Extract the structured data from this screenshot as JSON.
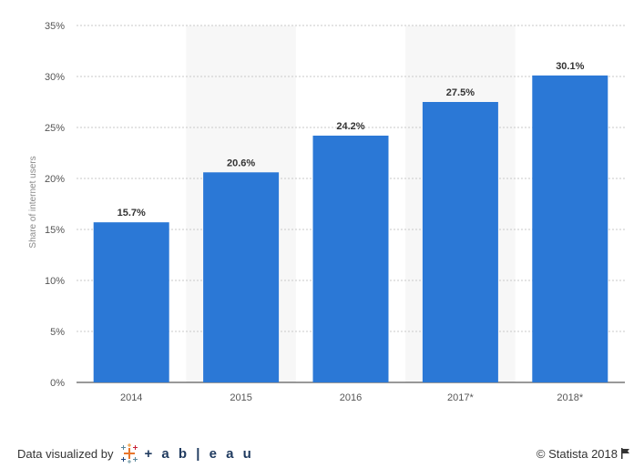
{
  "chart_data": {
    "type": "bar",
    "categories": [
      "2014",
      "2015",
      "2016",
      "2017*",
      "2018*"
    ],
    "values": [
      15.7,
      20.6,
      24.2,
      27.5,
      30.1
    ],
    "value_labels": [
      "15.7%",
      "20.6%",
      "24.2%",
      "27.5%",
      "30.1%"
    ],
    "ylabel": "Share of internet users",
    "xlabel": "",
    "ylim": [
      0,
      35
    ],
    "yticks": [
      0,
      5,
      10,
      15,
      20,
      25,
      30,
      35
    ],
    "ytick_labels": [
      "0%",
      "5%",
      "10%",
      "15%",
      "20%",
      "25%",
      "30%",
      "35%"
    ],
    "grid": true,
    "bar_color": "#2b78d6",
    "alternate_band_color": "#f7f7f7"
  },
  "footer": {
    "visualized_by": "Data visualized by",
    "tableau_word": "+ a b | e a u",
    "copyright": "© Statista 2018"
  },
  "icons": {
    "tableau": "tableau-logo-icon",
    "flag": "flag-icon"
  }
}
